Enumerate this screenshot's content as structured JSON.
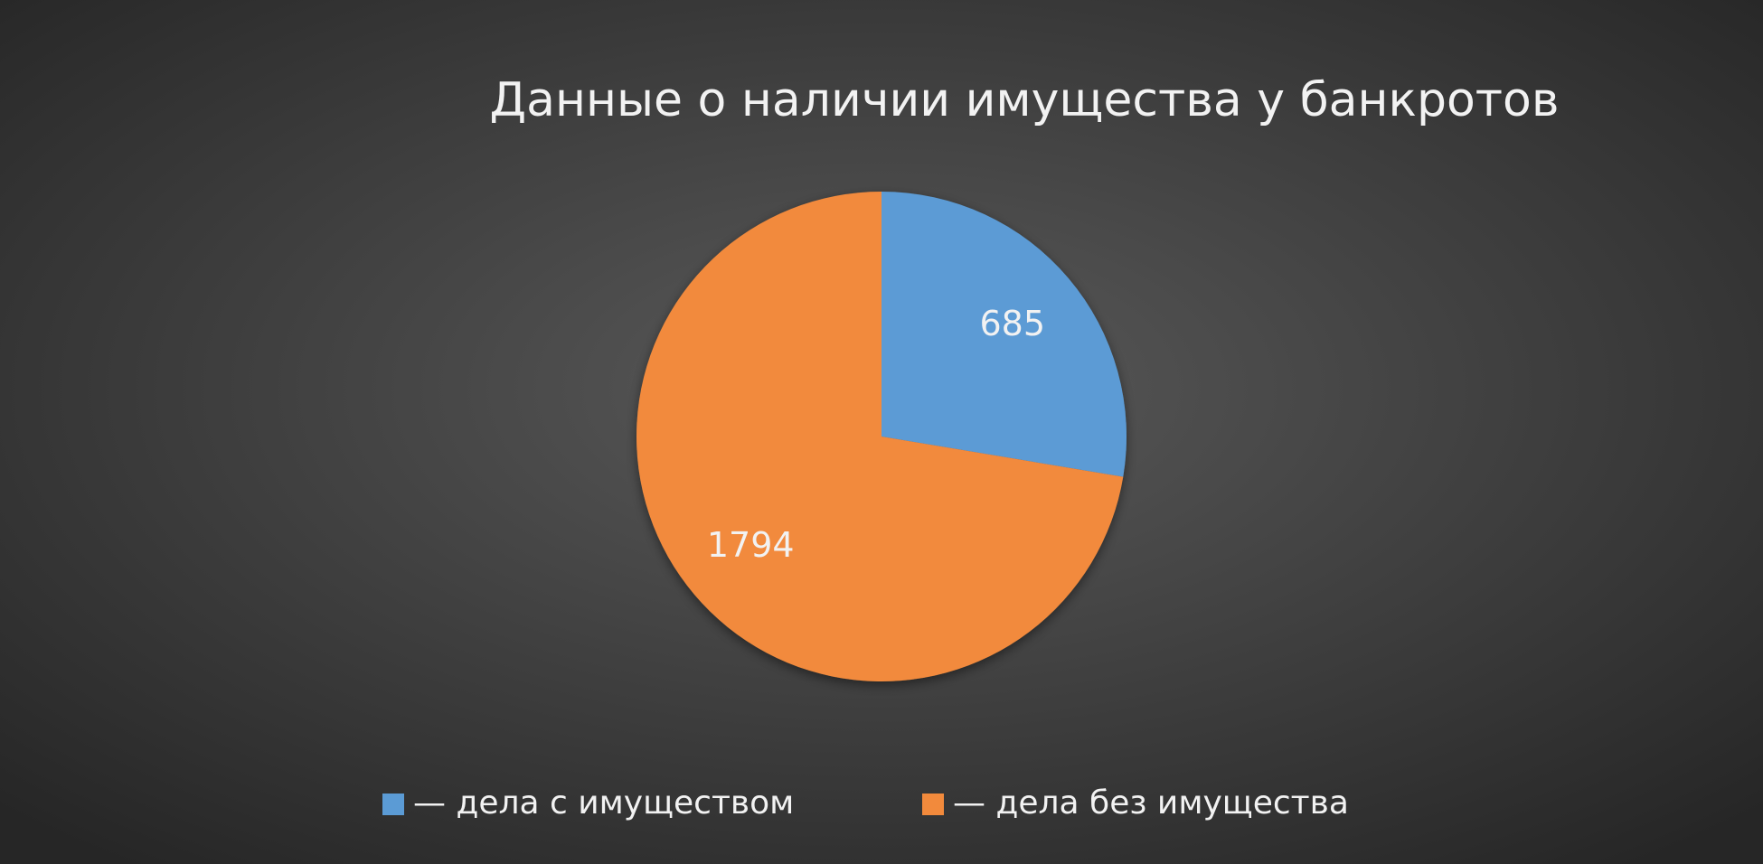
{
  "chart_data": {
    "type": "pie",
    "title": "Данные о наличии имущества у банкротов",
    "categories": [
      "— дела с имуществом",
      "— дела без имущества"
    ],
    "values": [
      685,
      1794
    ],
    "colors": [
      "#5b9bd5",
      "#f28a3c"
    ],
    "legend": "bottom"
  }
}
